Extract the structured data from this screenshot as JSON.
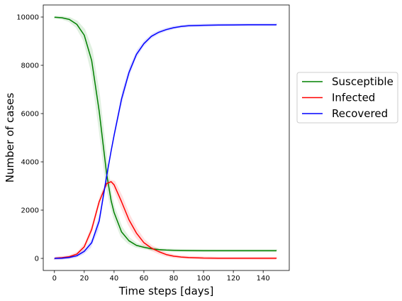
{
  "chart_data": {
    "type": "line",
    "xlabel": "Time steps [days]",
    "ylabel": "Number of cases",
    "xlim": [
      -7.5,
      157.5
    ],
    "ylim": [
      -500,
      10500
    ],
    "xticks": [
      0,
      20,
      40,
      60,
      80,
      100,
      120,
      140
    ],
    "yticks": [
      0,
      2000,
      4000,
      6000,
      8000,
      10000
    ],
    "grid": false,
    "legend_position": "outside-right",
    "x": [
      0,
      5,
      10,
      15,
      20,
      25,
      30,
      35,
      38,
      40,
      45,
      50,
      55,
      60,
      65,
      70,
      75,
      80,
      85,
      90,
      100,
      110,
      120,
      130,
      140,
      149
    ],
    "series": [
      {
        "name": "Susceptible",
        "color": "#008000",
        "values": [
          9990,
          9970,
          9900,
          9700,
          9250,
          8200,
          6100,
          3500,
          2400,
          1900,
          1100,
          730,
          540,
          460,
          400,
          365,
          345,
          335,
          330,
          325,
          322,
          320,
          320,
          320,
          320,
          320
        ]
      },
      {
        "name": "Infected",
        "color": "#ff0000",
        "values": [
          10,
          30,
          70,
          180,
          480,
          1200,
          2350,
          3100,
          3180,
          3050,
          2350,
          1600,
          1050,
          650,
          430,
          280,
          160,
          90,
          55,
          35,
          15,
          10,
          8,
          6,
          5,
          5
        ]
      },
      {
        "name": "Recovered",
        "color": "#0000ff",
        "values": [
          0,
          10,
          40,
          110,
          290,
          650,
          1550,
          3400,
          4450,
          5100,
          6600,
          7700,
          8450,
          8900,
          9200,
          9370,
          9480,
          9560,
          9610,
          9640,
          9660,
          9670,
          9675,
          9678,
          9680,
          9680
        ]
      }
    ]
  }
}
